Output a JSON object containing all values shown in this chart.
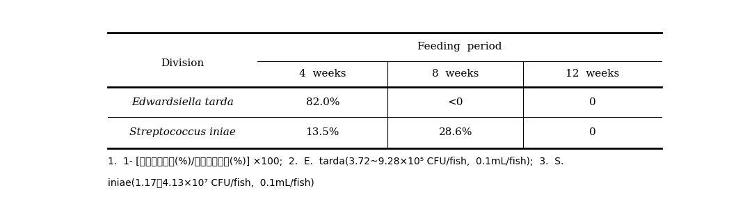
{
  "title": "Feeding  period",
  "col_header_main": "Division",
  "col_headers": [
    "4  weeks",
    "8  weeks",
    "12  weeks"
  ],
  "row_labels": [
    "Edwardsiella tarda",
    "Streptococcus iniae"
  ],
  "row_data": [
    [
      "82.0%",
      "<0",
      "0"
    ],
    [
      "13.5%",
      "28.6%",
      "0"
    ]
  ],
  "footnote_line1": "1.  1- [처리구폐사율(%)/대조구폐사율(%)] ×100;  2.  E.  tarda(3.72~9.28×10⁵ CFU/fish,  0.1mL/fish);  3.  S.",
  "footnote_line2": "iniae(1.17～4.13×10⁷ CFU/fish,  0.1mL/fish)",
  "bg_color": "#ffffff",
  "text_color": "#000000",
  "font_size_header": 11,
  "font_size_cell": 11,
  "font_size_footnote": 10
}
